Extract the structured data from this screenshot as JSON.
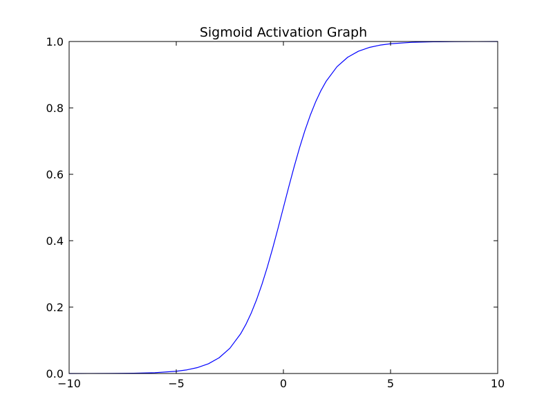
{
  "chart_data": {
    "type": "line",
    "title": "Sigmoid Activation Graph",
    "xlabel": "",
    "ylabel": "",
    "xlim": [
      -10,
      10
    ],
    "ylim": [
      0.0,
      1.0
    ],
    "grid": false,
    "legend": "none",
    "x_ticks": [
      {
        "value": -10,
        "label": "−10"
      },
      {
        "value": -5,
        "label": "−5"
      },
      {
        "value": 0,
        "label": "0"
      },
      {
        "value": 5,
        "label": "5"
      },
      {
        "value": 10,
        "label": "10"
      }
    ],
    "y_ticks": [
      {
        "value": 0.0,
        "label": "0.0"
      },
      {
        "value": 0.2,
        "label": "0.2"
      },
      {
        "value": 0.4,
        "label": "0.4"
      },
      {
        "value": 0.6,
        "label": "0.6"
      },
      {
        "value": 0.8,
        "label": "0.8"
      },
      {
        "value": 1.0,
        "label": "1.0"
      }
    ],
    "series": [
      {
        "color": "#0000ff",
        "x": [
          -10,
          -9,
          -8,
          -7,
          -6,
          -5,
          -4.5,
          -4,
          -3.5,
          -3,
          -2.5,
          -2,
          -1.75,
          -1.5,
          -1.25,
          -1,
          -0.75,
          -0.5,
          -0.25,
          0,
          0.25,
          0.5,
          0.75,
          1,
          1.25,
          1.5,
          1.75,
          2,
          2.5,
          3,
          3.5,
          4,
          4.5,
          5,
          6,
          7,
          8,
          9,
          10
        ],
        "y": [
          0.0,
          0.0001,
          0.0003,
          0.0009,
          0.0025,
          0.0067,
          0.011,
          0.018,
          0.0293,
          0.0474,
          0.0759,
          0.1192,
          0.148,
          0.1824,
          0.2227,
          0.2689,
          0.3208,
          0.3775,
          0.4378,
          0.5,
          0.5622,
          0.6225,
          0.6792,
          0.7311,
          0.7773,
          0.8176,
          0.852,
          0.8808,
          0.9241,
          0.9526,
          0.9707,
          0.982,
          0.989,
          0.9933,
          0.9975,
          0.9991,
          0.9997,
          0.9999,
          1.0
        ]
      }
    ]
  }
}
